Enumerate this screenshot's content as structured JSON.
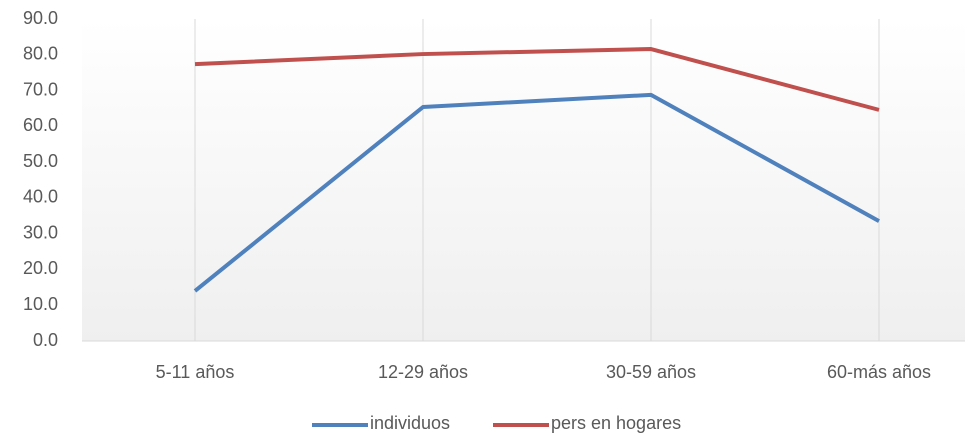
{
  "chart_data": {
    "type": "line",
    "categories": [
      "5-11 años",
      "12-29 años",
      "30-59 años",
      "60-más años"
    ],
    "series": [
      {
        "name": "individuos",
        "color": "#4f81bd",
        "values": [
          14.0,
          65.4,
          68.8,
          33.5
        ]
      },
      {
        "name": "pers en hogares",
        "color": "#c0504d",
        "values": [
          77.4,
          80.2,
          81.6,
          64.6
        ]
      }
    ],
    "ylim": [
      0,
      90
    ],
    "yticks": [
      {
        "value": 0,
        "label": "0.0"
      },
      {
        "value": 10,
        "label": "10.0"
      },
      {
        "value": 20,
        "label": "20.0"
      },
      {
        "value": 30,
        "label": "30.0"
      },
      {
        "value": 40,
        "label": "40.0"
      },
      {
        "value": 50,
        "label": "50.0"
      },
      {
        "value": 60,
        "label": "60.0"
      },
      {
        "value": 70,
        "label": "70.0"
      },
      {
        "value": 80,
        "label": "80.0"
      },
      {
        "value": 90,
        "label": "90.0"
      }
    ],
    "grid": true,
    "legend": "bottom"
  }
}
